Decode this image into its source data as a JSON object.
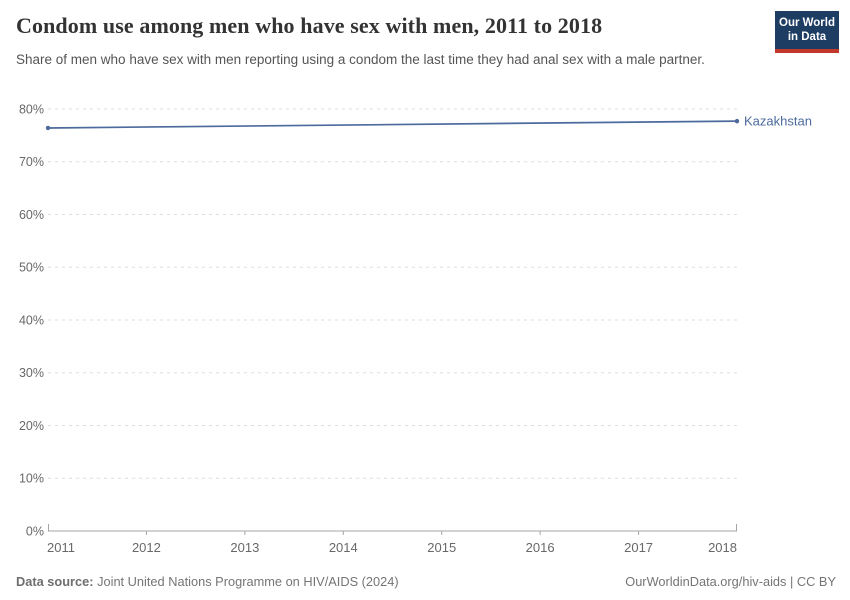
{
  "chart_data": {
    "type": "line",
    "title": "Condom use among men who have sex with men, 2011 to 2018",
    "subtitle": "Share of men who have sex with men reporting using a condom the last time they had anal sex with a male partner.",
    "x_ticks": [
      2011,
      2012,
      2013,
      2014,
      2015,
      2016,
      2017,
      2018
    ],
    "y_ticks": [
      0,
      10,
      20,
      30,
      40,
      50,
      60,
      70,
      80
    ],
    "y_tick_labels": [
      "0%",
      "10%",
      "20%",
      "30%",
      "40%",
      "50%",
      "60%",
      "70%",
      "80%"
    ],
    "xlim": [
      2011,
      2018
    ],
    "ylim": [
      0,
      80
    ],
    "grid": "horizontal-dashed",
    "legend": "line-end-label",
    "series": [
      {
        "name": "Kazakhstan",
        "color": "#4C6A9C",
        "points": [
          {
            "x": 2011,
            "y": 76.4
          },
          {
            "x": 2018,
            "y": 77.7
          }
        ]
      }
    ]
  },
  "logo": {
    "line1": "Our World",
    "line2": "in Data",
    "bg_color": "#1D3D63",
    "accent_color": "#C0392B"
  },
  "footer": {
    "datasource_label": "Data source:",
    "datasource_value": " Joint United Nations Programme on HIV/AIDS (2024)",
    "attribution": "OurWorldinData.org/hiv-aids | CC BY"
  },
  "colors": {
    "title": "#333333",
    "subtitle": "#555555",
    "grid": "#DDDDDD",
    "axis": "#A5A5A5",
    "tick_text": "#686868",
    "footer_text": "#757575"
  }
}
